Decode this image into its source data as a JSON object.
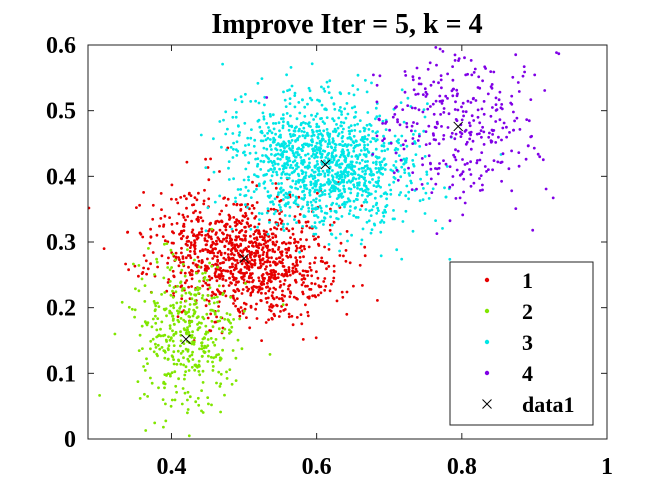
{
  "chart_data": {
    "type": "scatter",
    "title": "Improve Iter = 5, k = 4",
    "xlabel": "",
    "ylabel": "",
    "xlim": [
      0.285,
      1.0
    ],
    "ylim": [
      0,
      0.6
    ],
    "xticks": [
      {
        "value": 0.4,
        "label": "0.4"
      },
      {
        "value": 0.6,
        "label": "0.6"
      },
      {
        "value": 0.8,
        "label": "0.8"
      },
      {
        "value": 1.0,
        "label": "1"
      }
    ],
    "yticks": [
      {
        "value": 0.0,
        "label": "0"
      },
      {
        "value": 0.1,
        "label": "0.1"
      },
      {
        "value": 0.2,
        "label": "0.2"
      },
      {
        "value": 0.3,
        "label": "0.3"
      },
      {
        "value": 0.4,
        "label": "0.4"
      },
      {
        "value": 0.5,
        "label": "0.5"
      },
      {
        "value": 0.6,
        "label": "0.6"
      }
    ],
    "grid": false,
    "legend_position": "bottom-right",
    "series": [
      {
        "name": "1",
        "color": "#e60000",
        "marker": "dot",
        "center": [
          0.5,
          0.275
        ],
        "spread": [
          0.062,
          0.045
        ],
        "rotation": -0.35,
        "count": 1100
      },
      {
        "name": "2",
        "color": "#80e600",
        "marker": "dot",
        "center": [
          0.42,
          0.16
        ],
        "spread": [
          0.035,
          0.055
        ],
        "rotation": 0.0,
        "count": 430
      },
      {
        "name": "3",
        "color": "#00e6e6",
        "marker": "dot",
        "center": [
          0.612,
          0.42
        ],
        "spread": [
          0.062,
          0.048
        ],
        "rotation": -0.2,
        "count": 1300
      },
      {
        "name": "4",
        "color": "#8000e6",
        "marker": "dot",
        "center": [
          0.795,
          0.478
        ],
        "spread": [
          0.055,
          0.055
        ],
        "rotation": 0.0,
        "count": 340
      },
      {
        "name": "data1",
        "color": "#000000",
        "marker": "x",
        "points": [
          [
            0.5,
            0.275
          ],
          [
            0.42,
            0.152
          ],
          [
            0.612,
            0.418
          ],
          [
            0.795,
            0.476
          ]
        ]
      }
    ]
  }
}
